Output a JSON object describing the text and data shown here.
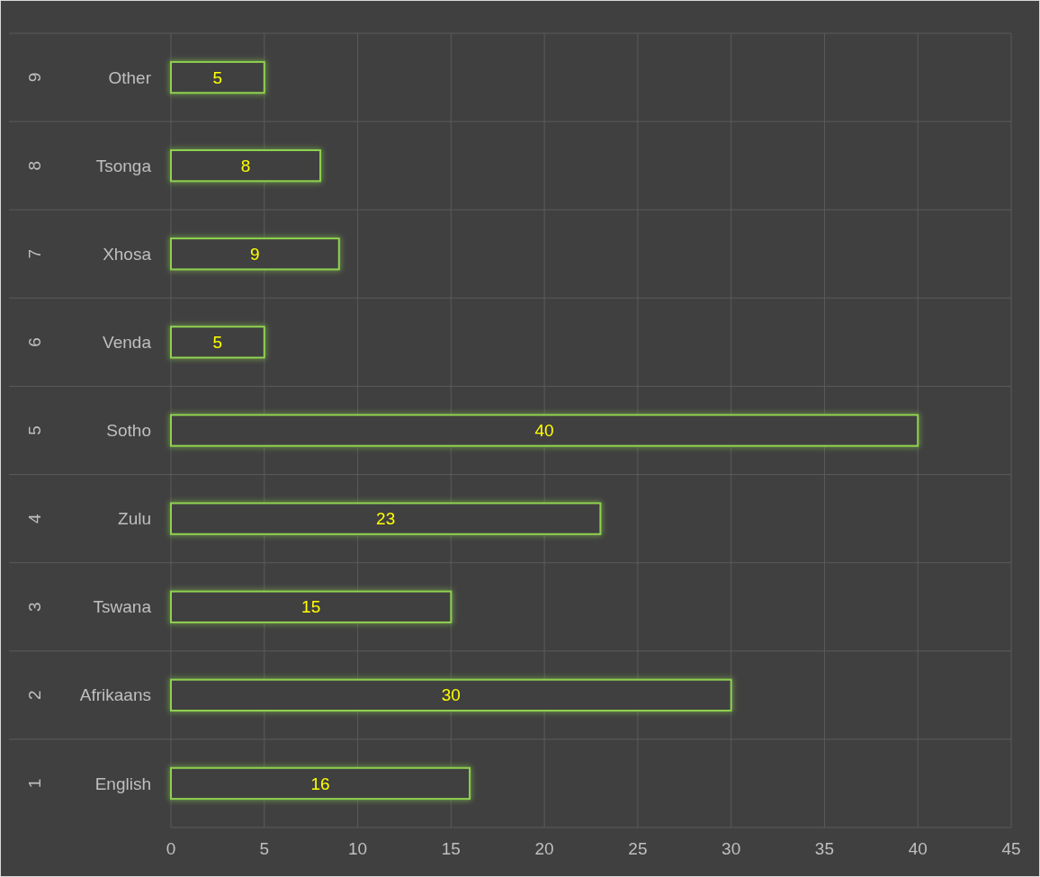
{
  "chart_data": {
    "type": "bar",
    "orientation": "horizontal",
    "categories": [
      "Other",
      "Tsonga",
      "Xhosa",
      "Venda",
      "Sotho",
      "Zulu",
      "Tswana",
      "Afrikaans",
      "English"
    ],
    "values": [
      5,
      8,
      9,
      5,
      40,
      23,
      15,
      30,
      16
    ],
    "color": "#8fd14f",
    "data_labels": true,
    "xlim": [
      0,
      45
    ],
    "xticks": [
      0,
      5,
      10,
      15,
      20,
      25,
      30,
      35,
      40,
      45
    ],
    "grid": true,
    "annotations": [
      "9",
      "8",
      "7",
      "6",
      "5",
      "4",
      "3",
      "2",
      "1"
    ]
  }
}
